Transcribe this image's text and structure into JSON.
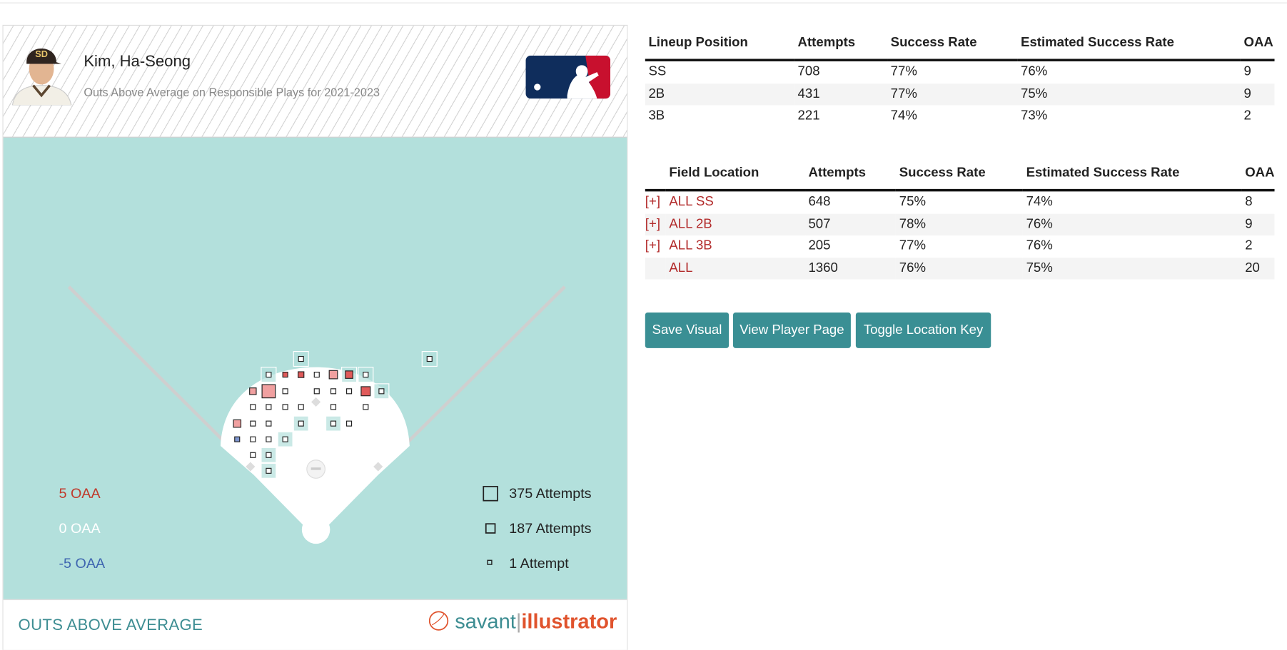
{
  "player": {
    "name": "Kim, Ha-Seong",
    "subtitle": "Outs Above Average on Responsible Plays for 2021-2023"
  },
  "legend": {
    "oaa": [
      "5 OAA",
      "0 OAA",
      "-5 OAA"
    ],
    "attempts": [
      "375 Attempts",
      "187 Attempts",
      "1 Attempt"
    ]
  },
  "footer": {
    "title": "OUTS ABOVE AVERAGE",
    "brand_left": "savant",
    "brand_right": "illustrator"
  },
  "lineup_table": {
    "headers": [
      "Lineup Position",
      "Attempts",
      "Success Rate",
      "Estimated Success Rate",
      "OAA"
    ],
    "rows": [
      [
        "SS",
        "708",
        "77%",
        "76%",
        "9"
      ],
      [
        "2B",
        "431",
        "77%",
        "75%",
        "9"
      ],
      [
        "3B",
        "221",
        "74%",
        "73%",
        "2"
      ]
    ]
  },
  "field_table": {
    "headers": [
      "Field Location",
      "Attempts",
      "Success Rate",
      "Estimated Success Rate",
      "OAA"
    ],
    "rows": [
      {
        "expand": "[+]",
        "cells": [
          "ALL SS",
          "648",
          "75%",
          "74%",
          "8"
        ]
      },
      {
        "expand": "[+]",
        "cells": [
          "ALL 2B",
          "507",
          "78%",
          "76%",
          "9"
        ]
      },
      {
        "expand": "[+]",
        "cells": [
          "ALL 3B",
          "205",
          "77%",
          "76%",
          "2"
        ]
      },
      {
        "cells": [
          "ALL",
          "1360",
          "76%",
          "75%",
          "20"
        ]
      }
    ]
  },
  "buttons": [
    "Save Visual",
    "View Player Page",
    "Toggle Location Key"
  ]
}
